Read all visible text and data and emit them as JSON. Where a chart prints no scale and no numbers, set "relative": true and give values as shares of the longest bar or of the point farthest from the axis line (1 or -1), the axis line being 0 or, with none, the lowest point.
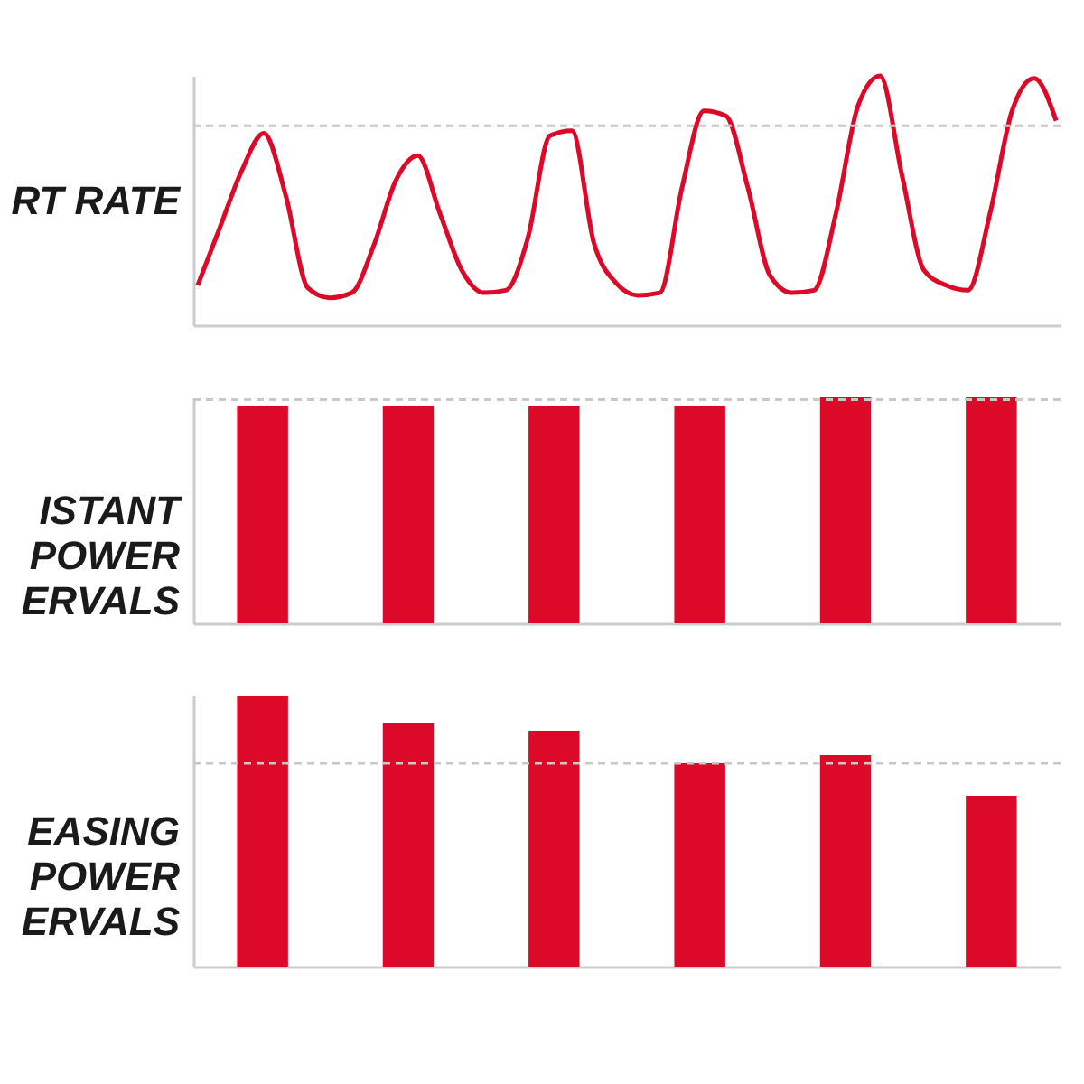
{
  "chart_data": [
    {
      "type": "line",
      "ylabel": "RT RATE",
      "relative": true,
      "categories": [
        null,
        null,
        null,
        null,
        null,
        null,
        null,
        null,
        null,
        null,
        null,
        null,
        null,
        null,
        null,
        null,
        null,
        null,
        null,
        null,
        null,
        null,
        null,
        null,
        null,
        null,
        null,
        null,
        null,
        null,
        null,
        null,
        null,
        null,
        null,
        null,
        null,
        null,
        null,
        null
      ],
      "series": [
        {
          "color": "#dc0a28",
          "values": [
            0.16,
            0.39,
            0.62,
            0.77,
            0.52,
            0.15,
            0.11,
            0.13,
            0.32,
            0.58,
            0.68,
            0.45,
            0.22,
            0.13,
            0.14,
            0.35,
            0.76,
            0.78,
            0.33,
            0.17,
            0.12,
            0.13,
            0.55,
            0.86,
            0.84,
            0.55,
            0.2,
            0.13,
            0.14,
            0.45,
            0.88,
            1,
            0.6,
            0.22,
            0.16,
            0.14,
            0.45,
            0.86,
            0.99,
            0.82
          ]
        }
      ],
      "ref_lines": [
        {
          "axis": "y",
          "value": 0.8,
          "color": "#c8c8c8",
          "line_style": "dashed"
        }
      ],
      "marker": "none",
      "line_style": "solid"
    },
    {
      "type": "bar",
      "ylabel": "ISTANT\nPOWER\nERVALS",
      "relative": true,
      "categories": [
        null,
        null,
        null,
        null,
        null,
        null
      ],
      "values": [
        0.96,
        0.96,
        0.96,
        0.96,
        1,
        1
      ],
      "color": "#dc0a28",
      "ref_lines": [
        {
          "axis": "y",
          "value": 0.99,
          "color": "#c8c8c8",
          "line_style": "dashed"
        }
      ]
    },
    {
      "type": "bar",
      "ylabel": "EASING\nPOWER\nERVALS",
      "relative": true,
      "categories": [
        null,
        null,
        null,
        null,
        null,
        null
      ],
      "values": [
        1,
        0.9,
        0.87,
        0.75,
        0.78,
        0.63
      ],
      "color": "#dc0a28",
      "ref_lines": [
        {
          "axis": "y",
          "value": 0.75,
          "color": "#c8c8c8",
          "line_style": "dashed"
        }
      ]
    }
  ]
}
